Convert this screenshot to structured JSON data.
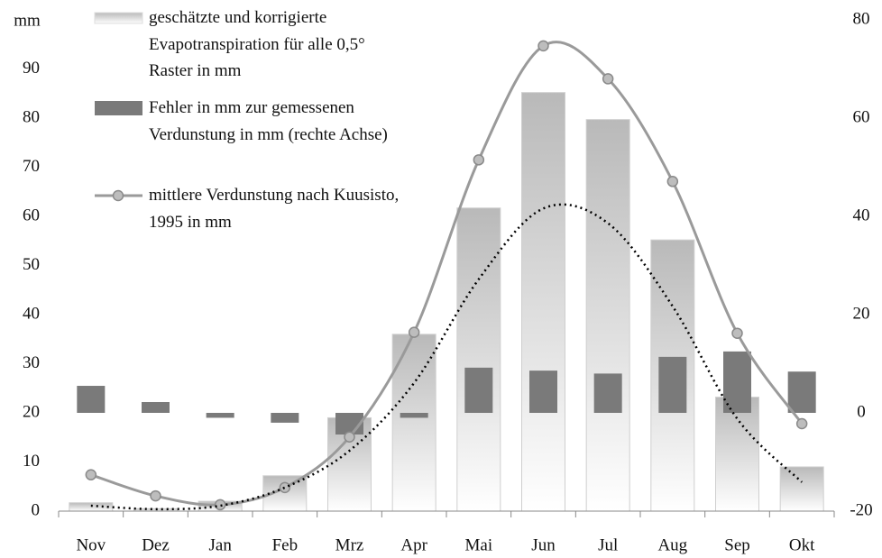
{
  "chart_data": {
    "type": "bar_line",
    "y_label": "mm",
    "categories": [
      "Nov",
      "Dez",
      "Jan",
      "Feb",
      "Mrz",
      "Apr",
      "Mai",
      "Jun",
      "Jul",
      "Aug",
      "Sep",
      "Okt"
    ],
    "series": [
      {
        "name": "geschätzte und korrigierte Evapotranspiration für alle 0,5° Raster in mm",
        "kind": "bar",
        "color": "#b9b9b9",
        "values": [
          1.7,
          0.5,
          2,
          7.2,
          19,
          36,
          61.7,
          85.2,
          79.7,
          55.2,
          23.2,
          9
        ]
      },
      {
        "name": "Fehler in mm zur gemessenen Verdunstung in mm (rechte Achse)",
        "kind": "bar",
        "axis": "y2",
        "color": "#7a7a7a",
        "values": [
          5.5,
          2.2,
          -1,
          -2,
          -4.4,
          -1,
          9.2,
          8.6,
          8,
          11.4,
          12.5,
          8.4
        ]
      },
      {
        "name": "mittlere Verdunstung nach Kuusisto, 1995 in mm",
        "kind": "line",
        "color": "#9a9a9a",
        "values": [
          7.4,
          3.1,
          1.3,
          4.8,
          15.1,
          36.4,
          71.5,
          94.7,
          88,
          67.1,
          36.2,
          17.8
        ]
      },
      {
        "kind": "dotted",
        "color": "#000000",
        "values": [
          1.1,
          0.4,
          1.1,
          4.8,
          12.3,
          26.1,
          47.2,
          61.6,
          58.6,
          41.7,
          18.8,
          5.9
        ]
      }
    ],
    "ylim": [
      0,
      100
    ],
    "yticks": [
      0,
      10,
      20,
      30,
      40,
      50,
      60,
      70,
      80,
      90
    ],
    "y2lim": [
      -20,
      80
    ],
    "y2ticks": [
      -20,
      0,
      20,
      40,
      60,
      80
    ]
  }
}
